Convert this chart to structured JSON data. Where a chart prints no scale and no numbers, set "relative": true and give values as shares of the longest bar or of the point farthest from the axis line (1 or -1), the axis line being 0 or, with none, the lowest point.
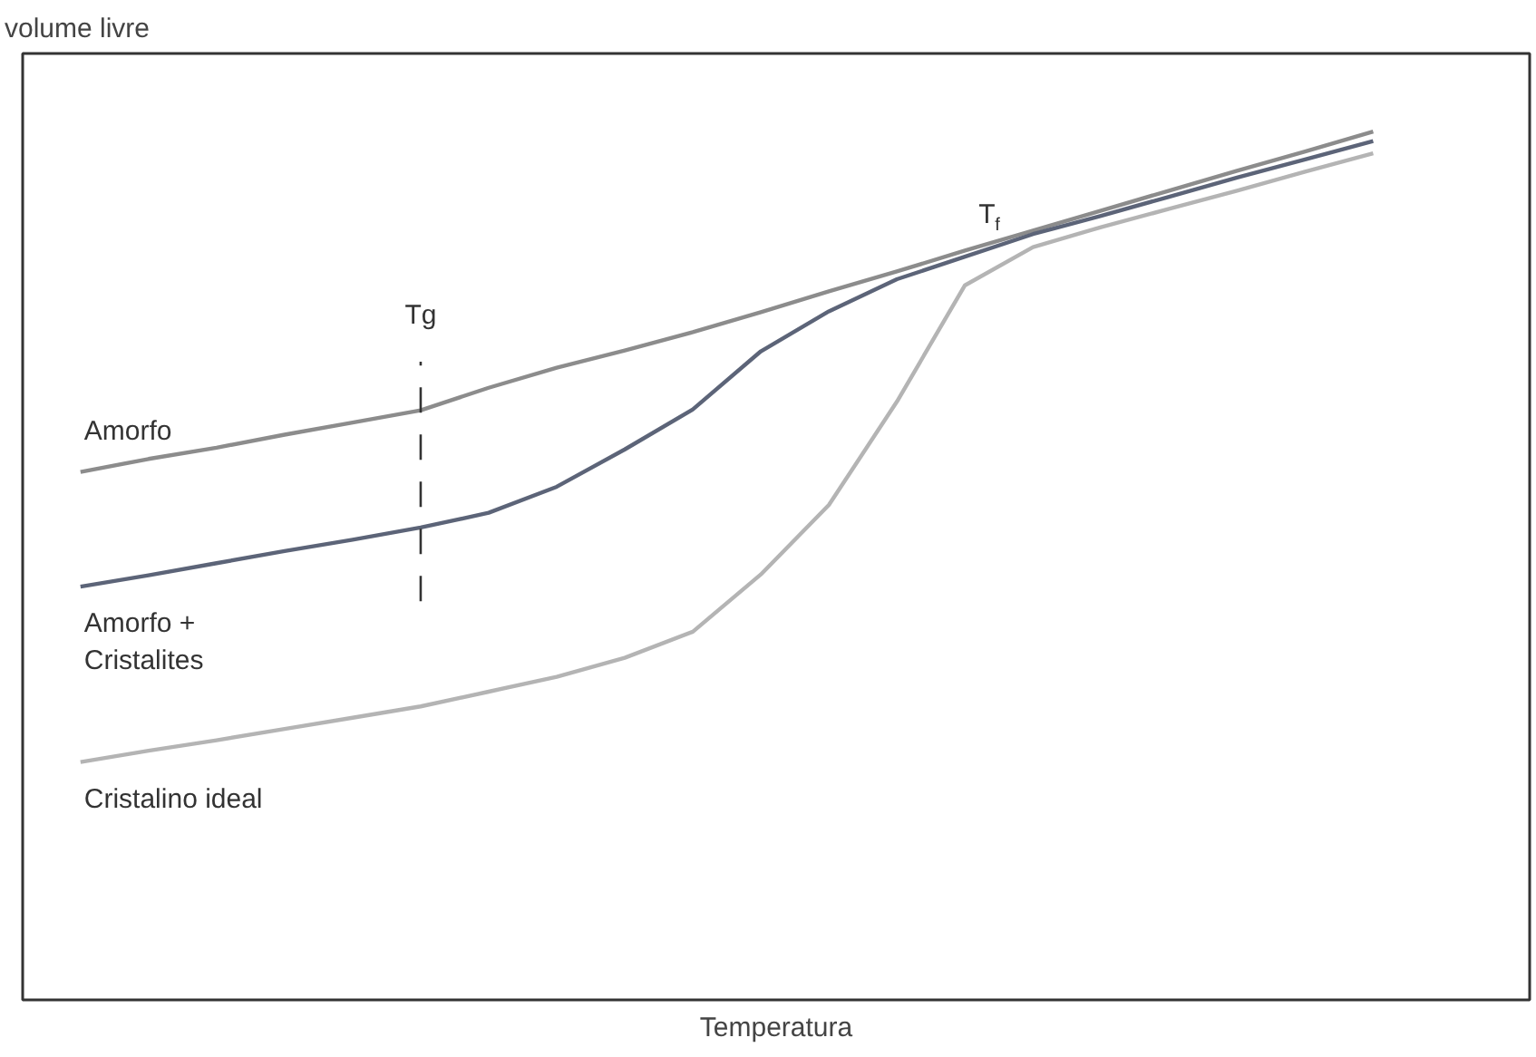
{
  "chart_data": {
    "type": "line",
    "relative": true,
    "xlabel": "Temperatura",
    "ylabel": "volume livre",
    "tick_labels": false,
    "grid": false,
    "marker": "none",
    "line_style": "solid",
    "categories": [
      null,
      null,
      null,
      null,
      null,
      null,
      null,
      null,
      null,
      null,
      null,
      null,
      null,
      null,
      null,
      null,
      null,
      null,
      null,
      null
    ],
    "series": [
      {
        "name": "Amorfo",
        "color": "#8c8c8c",
        "values": [
          0.608,
          0.623,
          0.636,
          0.651,
          0.665,
          0.679,
          0.705,
          0.728,
          0.748,
          0.769,
          0.792,
          0.816,
          0.839,
          0.863,
          0.886,
          0.909,
          0.932,
          0.955,
          0.977,
          1.0
        ]
      },
      {
        "name": "Amorfo +\nCristalites",
        "color": "#5c6478",
        "values": [
          0.476,
          0.489,
          0.503,
          0.517,
          0.53,
          0.544,
          0.561,
          0.591,
          0.634,
          0.68,
          0.747,
          0.793,
          0.83,
          0.856,
          0.882,
          0.903,
          0.925,
          0.947,
          0.968,
          0.989
        ]
      },
      {
        "name": "Cristalino ideal",
        "color": "#b4b4b4",
        "values": [
          0.274,
          0.287,
          0.299,
          0.312,
          0.325,
          0.338,
          0.355,
          0.372,
          0.394,
          0.424,
          0.49,
          0.57,
          0.689,
          0.823,
          0.867,
          0.89,
          0.911,
          0.932,
          0.954,
          0.975
        ]
      }
    ],
    "annotations": [
      "Tg",
      {
        "text": "T$_{f}$",
        "y": 0.87
      }
    ]
  }
}
